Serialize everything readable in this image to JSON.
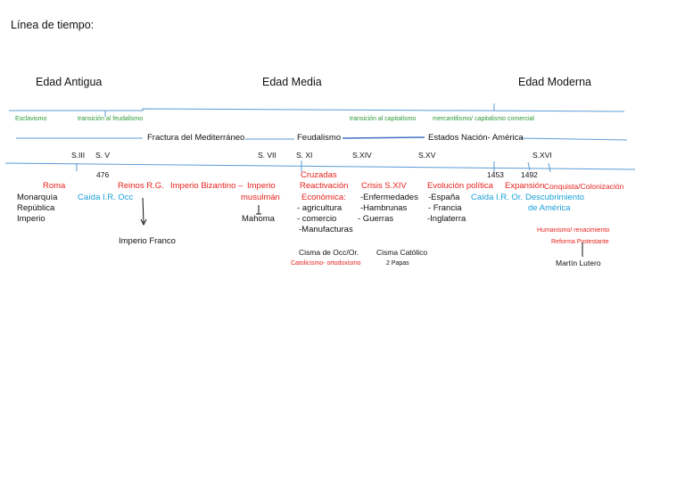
{
  "title": "Línea de tiempo:",
  "eras": {
    "antigua": "Edad Antigua",
    "media": "Edad Media",
    "moderna": "Edad Moderna"
  },
  "row_green": {
    "esclavismo": "Esclavismo",
    "transicion_feudalismo": "transición al feudalismo",
    "transicion_capitalismo": "transición al capitalismo",
    "mercantilismo": "mercantilismo/ capitalismo comercial"
  },
  "row_economy": {
    "fractura": "Fractura del Mediterráneo",
    "feudalismo": "Feudalismo",
    "estados": "Estados Nación- América"
  },
  "centuries": {
    "s3": "S.III",
    "s5": "S. V",
    "s7": "S. VII",
    "s11": "S. XI",
    "s14": "S.XIV",
    "s15": "S.XV",
    "s16": "S.XVI"
  },
  "years": {
    "y476": "476",
    "y1453": "1453",
    "y1492": "1492"
  },
  "events": {
    "roma": "Roma",
    "monarquia": "Monarquía",
    "republica": "República",
    "imperio": "Imperio",
    "caida_occ": "Caída I.R. Occ",
    "reinos": "Reinos R.G.",
    "imperio_franco": "Imperio Franco",
    "bizantino": "Imperio Bizantino –",
    "musulman_1": "Imperio",
    "musulman_2": "musulmán",
    "mahoma": "Mahoma",
    "cruzadas": "Cruzadas",
    "reactivacion": "Reactivación",
    "economica": "Económica:",
    "agricultura": "- agricultura",
    "comercio": "- comercio",
    "manufacturas": "-Manufacturas",
    "crisis": "Crisis S.XIV",
    "enfermedades": "-Enfermedades",
    "hambrunas": "-Hambrunas",
    "guerras": "- Guerras",
    "cisma_occ": "Cisma de Occ/Or.",
    "catolicismo": "Catolicismo- ortodoxismo",
    "cisma_catolico": "Cisma Católico",
    "dos_papas": "2 Papas",
    "evolucion": "Evolución política",
    "espana": "-España",
    "francia": "- Francia",
    "inglaterra": "-Inglaterra",
    "caida_or": "Caída I.R. Or.",
    "expansion": "Expansión",
    "conquista": "Conquista/Colonización",
    "descubrimiento_1": "Descubrimiento",
    "descubrimiento_2": "de América",
    "humanismo": "Humanismo/ renacimiento",
    "reforma": "Reforma Protestante",
    "lutero": "Martín Lutero"
  },
  "colors": {
    "line": "#5b9bd5",
    "red": "#e8231e",
    "blue": "#1aa0d8",
    "green": "#2c9a36",
    "text": "#111111"
  }
}
